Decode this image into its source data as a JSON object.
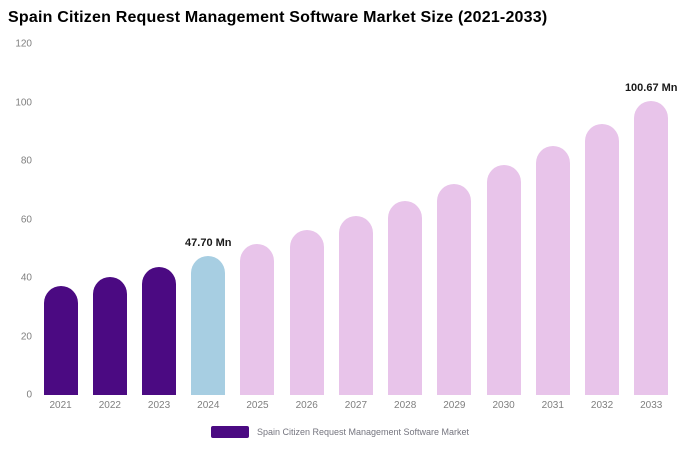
{
  "chart_data": {
    "type": "bar",
    "title": "Spain Citizen Request Management Software Market Size (2021-2033)",
    "categories": [
      "2021",
      "2022",
      "2023",
      "2024",
      "2025",
      "2026",
      "2027",
      "2028",
      "2029",
      "2030",
      "2031",
      "2032",
      "2033"
    ],
    "values": [
      37.2,
      40.4,
      43.9,
      47.7,
      51.8,
      56.3,
      61.2,
      66.5,
      72.2,
      78.5,
      85.3,
      92.7,
      100.67
    ],
    "unit": "Mn",
    "ylim": [
      0,
      120
    ],
    "yticks": [
      0,
      20,
      40,
      60,
      80,
      100,
      120
    ],
    "grid": false,
    "legend_position": "bottom",
    "bar_colors": {
      "historical": "#4b0a82",
      "current": "#a7cee2",
      "forecast": "#e8c4ea"
    },
    "color_assignment": [
      "historical",
      "historical",
      "historical",
      "current",
      "forecast",
      "forecast",
      "forecast",
      "forecast",
      "forecast",
      "forecast",
      "forecast",
      "forecast",
      "forecast"
    ],
    "annotations": [
      {
        "index": 3,
        "text": "47.70 Mn"
      },
      {
        "index": 12,
        "text": "100.67 Mn"
      }
    ],
    "legend": [
      {
        "label": "Spain Citizen Request Management Software Market",
        "color": "#4b0a82"
      }
    ]
  }
}
